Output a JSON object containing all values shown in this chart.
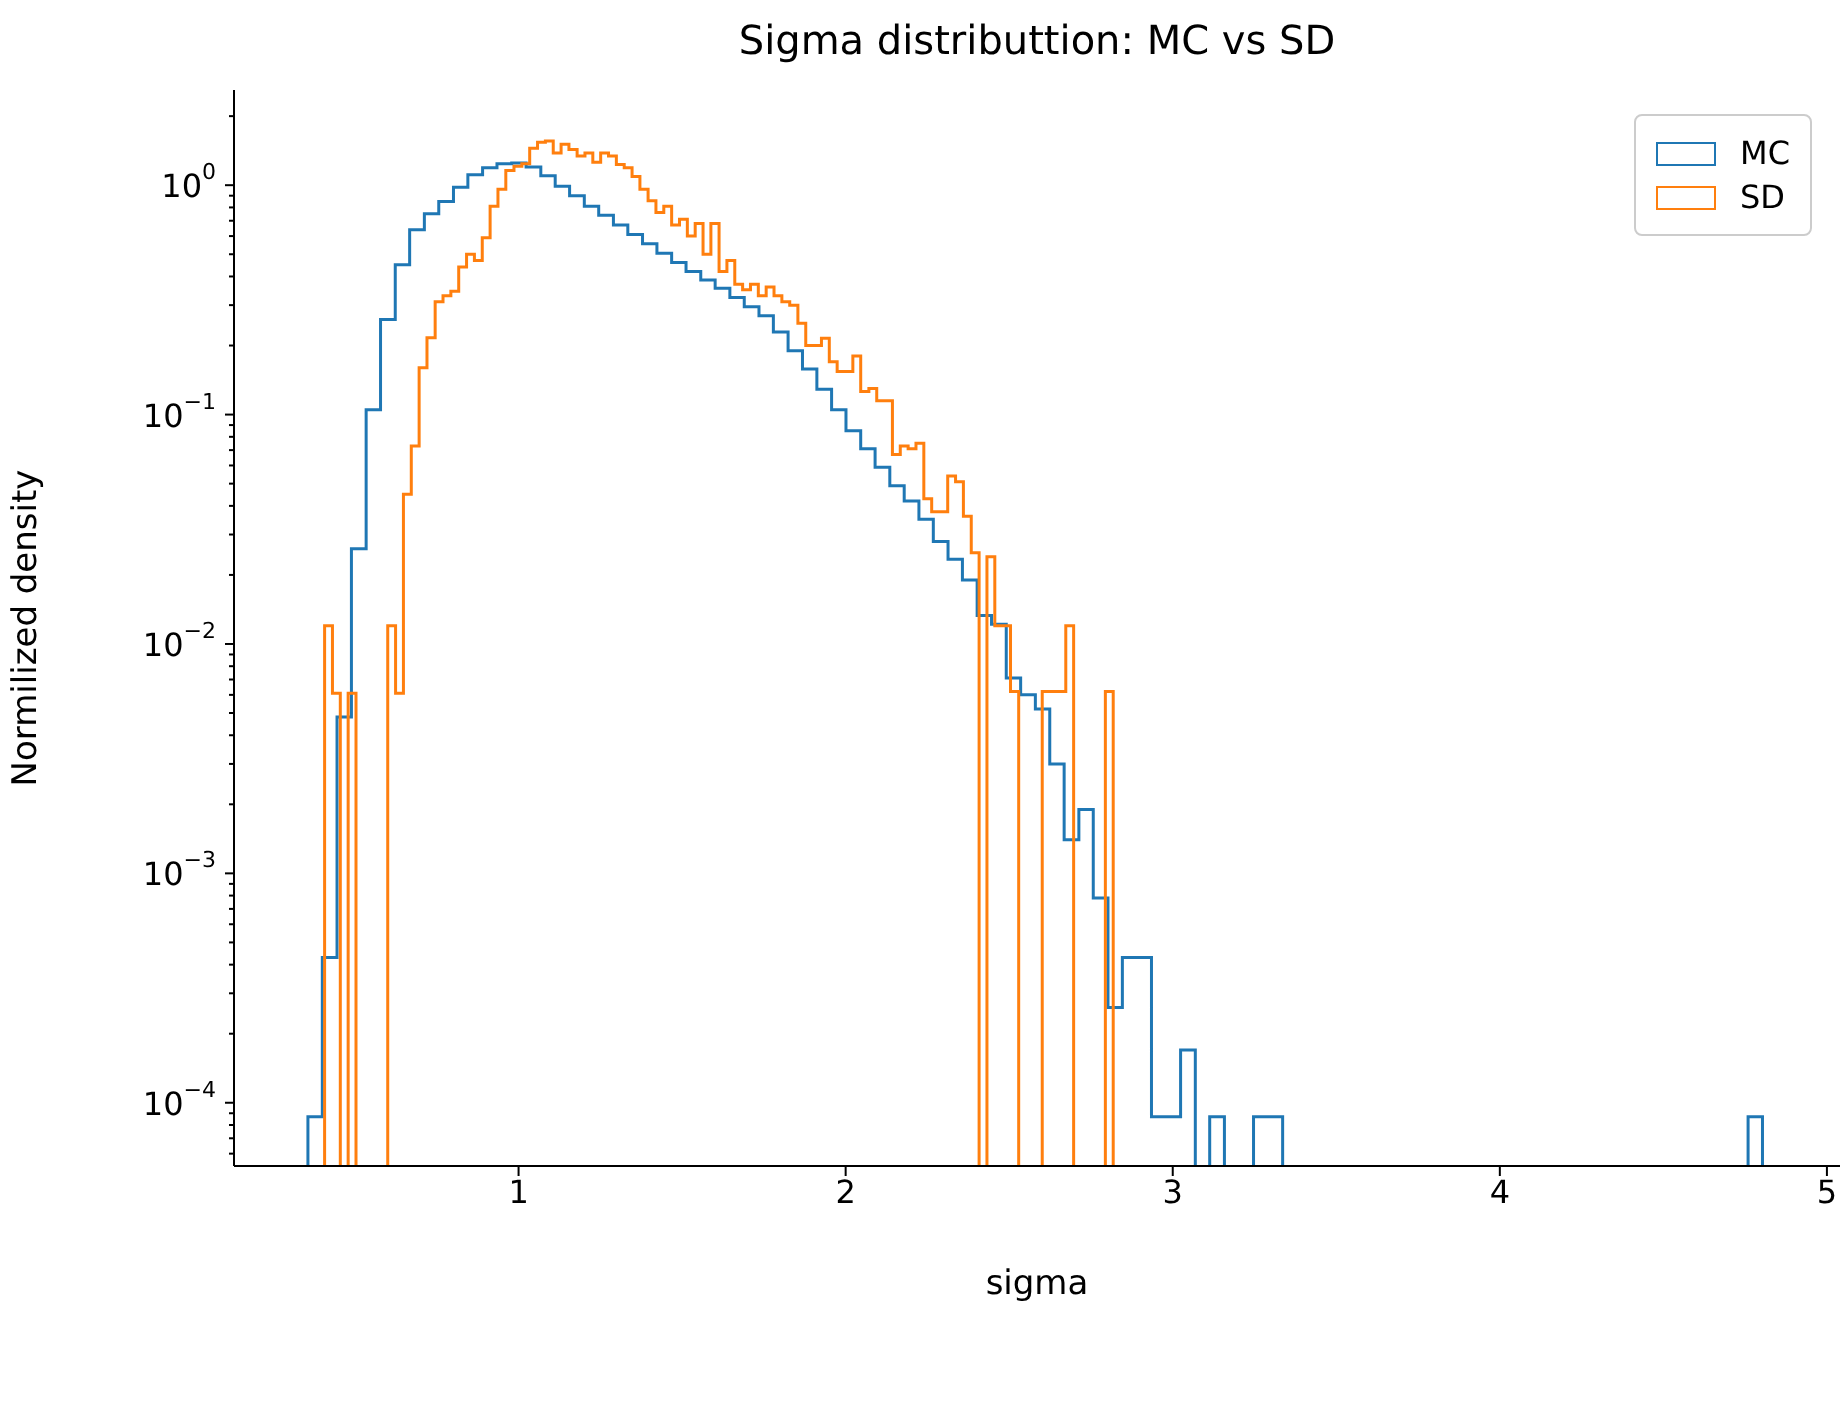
{
  "chart_data": {
    "type": "step",
    "title": "Sigma distributtion: MC vs SD",
    "xlabel": "sigma",
    "ylabel": "Normilized density",
    "log": "y",
    "legend": "top right",
    "xlim": [
      0.13,
      5.04
    ],
    "xticks": [
      1,
      2,
      3,
      4,
      5
    ],
    "ylim": [
      5.3e-05,
      2.6
    ],
    "yticks": [
      {
        "value": 6e-05,
        "label": null
      },
      {
        "value": 7e-05,
        "label": null
      },
      {
        "value": 8e-05,
        "label": null
      },
      {
        "value": 9e-05,
        "label": null
      },
      {
        "value": 0.0001,
        "label": "10$^{−4}$"
      },
      {
        "value": 0.0002,
        "label": null
      },
      {
        "value": 0.0003,
        "label": null
      },
      {
        "value": 0.0004,
        "label": null
      },
      {
        "value": 0.0005,
        "label": null
      },
      {
        "value": 0.0006,
        "label": null
      },
      {
        "value": 0.0007,
        "label": null
      },
      {
        "value": 0.0008,
        "label": null
      },
      {
        "value": 0.0009,
        "label": null
      },
      {
        "value": 0.001,
        "label": "10$^{−3}$"
      },
      {
        "value": 0.002,
        "label": null
      },
      {
        "value": 0.003,
        "label": null
      },
      {
        "value": 0.004,
        "label": null
      },
      {
        "value": 0.005,
        "label": null
      },
      {
        "value": 0.006,
        "label": null
      },
      {
        "value": 0.007,
        "label": null
      },
      {
        "value": 0.008,
        "label": null
      },
      {
        "value": 0.009,
        "label": null
      },
      {
        "value": 0.01,
        "label": "10$^{−2}$"
      },
      {
        "value": 0.02,
        "label": null
      },
      {
        "value": 0.03,
        "label": null
      },
      {
        "value": 0.04,
        "label": null
      },
      {
        "value": 0.05,
        "label": null
      },
      {
        "value": 0.06,
        "label": null
      },
      {
        "value": 0.07,
        "label": null
      },
      {
        "value": 0.08,
        "label": null
      },
      {
        "value": 0.09,
        "label": null
      },
      {
        "value": 0.1,
        "label": "10$^{−1}$"
      },
      {
        "value": 0.2,
        "label": null
      },
      {
        "value": 0.3,
        "label": null
      },
      {
        "value": 0.4,
        "label": null
      },
      {
        "value": 0.5,
        "label": null
      },
      {
        "value": 0.6,
        "label": null
      },
      {
        "value": 0.7,
        "label": null
      },
      {
        "value": 0.8,
        "label": null
      },
      {
        "value": 0.9,
        "label": null
      },
      {
        "value": 1,
        "label": "10$^{0}$"
      },
      {
        "value": 2,
        "label": null
      }
    ],
    "series": [
      {
        "name": "MC",
        "color": "#1f77b4",
        "x": [
          0.356,
          0.4,
          0.445,
          0.489,
          0.534,
          0.578,
          0.623,
          0.667,
          0.712,
          0.756,
          0.801,
          0.845,
          0.89,
          0.934,
          0.979,
          1.023,
          1.068,
          1.112,
          1.156,
          1.201,
          1.245,
          1.29,
          1.334,
          1.379,
          1.423,
          1.468,
          1.512,
          1.557,
          1.601,
          1.646,
          1.69,
          1.735,
          1.779,
          1.824,
          1.868,
          1.912,
          1.957,
          2.001,
          2.046,
          2.09,
          2.135,
          2.179,
          2.224,
          2.268,
          2.313,
          2.357,
          2.402,
          2.446,
          2.491,
          2.535,
          2.58,
          2.624,
          2.668,
          2.713,
          2.757,
          2.802,
          2.846,
          2.891,
          2.935,
          2.98,
          3.024,
          3.069,
          3.113,
          3.158,
          3.202,
          3.247,
          3.291,
          3.336,
          3.38,
          3.425,
          3.469,
          3.513,
          3.558,
          3.602,
          3.647,
          3.691,
          3.736,
          3.78,
          3.825,
          3.869,
          3.914,
          3.958,
          4.003,
          4.047,
          4.092,
          4.136,
          4.18,
          4.225,
          4.269,
          4.314,
          4.358,
          4.403,
          4.447,
          4.492,
          4.536,
          4.581,
          4.625,
          4.67,
          4.714,
          4.759,
          4.803
        ],
        "values": [
          8.7e-05,
          0.00043,
          0.0048,
          0.026,
          0.105,
          0.26,
          0.45,
          0.64,
          0.75,
          0.85,
          0.98,
          1.11,
          1.19,
          1.24,
          1.25,
          1.2,
          1.1,
          0.99,
          0.9,
          0.81,
          0.74,
          0.67,
          0.61,
          0.555,
          0.505,
          0.46,
          0.42,
          0.386,
          0.355,
          0.324,
          0.295,
          0.27,
          0.229,
          0.19,
          0.158,
          0.129,
          0.105,
          0.085,
          0.071,
          0.059,
          0.049,
          0.042,
          0.035,
          0.028,
          0.0234,
          0.019,
          0.0133,
          0.0122,
          0.0071,
          0.006,
          0.0052,
          0.003,
          0.0014,
          0.0019,
          0.00078,
          0.00026,
          0.00043,
          0.00043,
          8.7e-05,
          8.7e-05,
          0.00017,
          null,
          8.7e-05,
          null,
          null,
          8.7e-05,
          8.7e-05,
          null,
          null,
          null,
          null,
          null,
          null,
          null,
          null,
          null,
          null,
          null,
          null,
          null,
          null,
          null,
          null,
          null,
          null,
          null,
          null,
          null,
          null,
          null,
          null,
          null,
          null,
          null,
          null,
          null,
          null,
          null,
          null,
          8.7e-05,
          8.7e-05
        ]
      },
      {
        "name": "SD",
        "color": "#ff7f0e",
        "x": [
          0.407,
          0.431,
          0.455,
          0.479,
          0.503,
          0.528,
          0.552,
          0.576,
          0.6,
          0.624,
          0.648,
          0.672,
          0.696,
          0.72,
          0.745,
          0.769,
          0.793,
          0.817,
          0.841,
          0.865,
          0.889,
          0.913,
          0.937,
          0.961,
          0.986,
          1.01,
          1.034,
          1.058,
          1.082,
          1.106,
          1.13,
          1.154,
          1.179,
          1.203,
          1.227,
          1.251,
          1.275,
          1.299,
          1.323,
          1.347,
          1.371,
          1.396,
          1.42,
          1.444,
          1.468,
          1.492,
          1.516,
          1.54,
          1.564,
          1.588,
          1.613,
          1.637,
          1.661,
          1.685,
          1.709,
          1.733,
          1.757,
          1.781,
          1.805,
          1.829,
          1.854,
          1.878,
          1.902,
          1.926,
          1.95,
          1.974,
          1.998,
          2.022,
          2.046,
          2.071,
          2.095,
          2.119,
          2.143,
          2.167,
          2.191,
          2.215,
          2.239,
          2.263,
          2.288,
          2.312,
          2.336,
          2.36,
          2.384,
          2.408,
          2.432,
          2.456,
          2.48,
          2.504,
          2.529,
          2.553,
          2.577,
          2.601,
          2.625,
          2.649,
          2.673,
          2.697,
          2.722,
          2.746,
          2.77,
          2.794,
          2.818
        ],
        "values": [
          0.012,
          0.0061,
          null,
          0.0061,
          null,
          null,
          null,
          null,
          0.012,
          0.0061,
          0.045,
          0.073,
          0.16,
          0.216,
          0.31,
          0.33,
          0.345,
          0.44,
          0.5,
          0.47,
          0.59,
          0.81,
          0.96,
          1.16,
          1.21,
          1.24,
          1.45,
          1.54,
          1.56,
          1.38,
          1.51,
          1.43,
          1.34,
          1.38,
          1.26,
          1.38,
          1.34,
          1.23,
          1.19,
          1.09,
          0.96,
          0.855,
          0.76,
          0.81,
          0.67,
          0.71,
          0.6,
          0.68,
          0.5,
          0.68,
          0.42,
          0.47,
          0.37,
          0.35,
          0.37,
          0.33,
          0.36,
          0.33,
          0.31,
          0.3,
          0.25,
          0.2,
          0.2,
          0.215,
          0.17,
          0.154,
          0.154,
          0.18,
          0.126,
          0.13,
          0.115,
          0.115,
          0.067,
          0.073,
          0.071,
          0.075,
          0.043,
          0.0377,
          0.0377,
          0.054,
          0.051,
          0.036,
          0.025,
          null,
          0.024,
          0.012,
          0.012,
          0.0062,
          null,
          null,
          null,
          0.0062,
          0.0062,
          0.0062,
          0.012,
          null,
          null,
          null,
          null,
          0.0062,
          0.0062
        ]
      }
    ]
  }
}
